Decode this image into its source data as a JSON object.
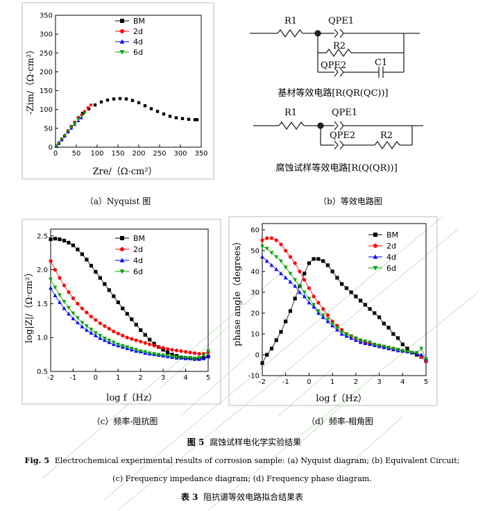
{
  "colors": {
    "bm": "#000000",
    "d2": "#ff0000",
    "d4": "#0000ff",
    "d6": "#00a000",
    "watermark": "#4cbb3c"
  },
  "panel_a": {
    "caption": "（a）Nyquist 图",
    "xlabel": "Zre/（Ω·cm²）",
    "ylabel": "-Zim/（Ω·cm²）"
  },
  "panel_b": {
    "caption": "（b）等效电路图",
    "c1": {
      "r1": "R1",
      "qpe1": "QPE1",
      "r2": "R2",
      "qpe2": "QPE2",
      "c1": "C1",
      "caption": "基材等效电路[R(QR(QC))]"
    },
    "c2": {
      "r1": "R1",
      "qpe1": "QPE1",
      "qpe2": "QPE2",
      "r2": "R2",
      "caption": "腐蚀试样等效电路[R(Q(QR))]"
    }
  },
  "panel_c": {
    "caption": "（c）频率-阻抗图",
    "xlabel": "log f（Hz）",
    "ylabel": "log|Z|/（Ω·cm²）"
  },
  "panel_d": {
    "caption": "（d）频率-相角图",
    "xlabel": "log f（Hz）",
    "ylabel": "phase angle（degrees）"
  },
  "figure": {
    "fig_cn_num": "图 5",
    "fig_cn_text": "腐蚀试样电化学实验结果",
    "fig_en_num": "Fig. 5",
    "fig_en_line1": "Electrochemical experimental results of corrosion sample: (a) Nyquist diagram;  (b) Equivalent Circuit;",
    "fig_en_line2": "(c) Frequency impedance diagram; (d) Frequency phase diagram.",
    "table_num": "表 3",
    "table_text": "阻抗谱等效电路拟合结果表"
  },
  "chart_data": [
    {
      "id": "a",
      "type": "scatter",
      "xlim": [
        0,
        350
      ],
      "ylim": [
        0,
        350
      ],
      "xticks": [
        0,
        50,
        100,
        150,
        200,
        250,
        300,
        350
      ],
      "yticks": [
        0,
        50,
        100,
        150,
        200,
        250,
        300,
        350
      ],
      "legend": "top-right",
      "series": [
        {
          "name": "BM",
          "marker": "square",
          "x": [
            2,
            8,
            15,
            22,
            30,
            38,
            46,
            55,
            65,
            80,
            95,
            110,
            125,
            140,
            155,
            170,
            185,
            200,
            215,
            230,
            245,
            260,
            275,
            290,
            305,
            320,
            335,
            340
          ],
          "y": [
            2,
            10,
            20,
            30,
            42,
            55,
            66,
            78,
            90,
            102,
            112,
            120,
            125,
            128,
            129,
            128,
            124,
            118,
            110,
            102,
            95,
            88,
            82,
            78,
            76,
            74,
            73,
            73
          ]
        },
        {
          "name": "2d",
          "marker": "circle",
          "x": [
            2,
            8,
            15,
            22,
            30,
            38,
            46,
            55,
            63,
            70,
            78,
            85
          ],
          "y": [
            3,
            12,
            22,
            32,
            44,
            55,
            66,
            77,
            86,
            95,
            105,
            112
          ]
        },
        {
          "name": "4d",
          "marker": "triangle-up",
          "x": [
            2,
            8,
            15,
            22,
            30,
            38,
            46,
            55,
            62
          ],
          "y": [
            2,
            10,
            19,
            29,
            40,
            50,
            60,
            70,
            78
          ]
        },
        {
          "name": "6d",
          "marker": "triangle-down",
          "x": [
            2,
            8,
            15,
            22,
            30,
            38,
            46,
            55,
            63,
            70
          ],
          "y": [
            2,
            11,
            21,
            31,
            42,
            53,
            63,
            74,
            82,
            90
          ]
        }
      ]
    },
    {
      "id": "c",
      "type": "scatter",
      "xlim": [
        -2,
        5
      ],
      "ylim": [
        0.5,
        2.6
      ],
      "xticks": [
        -2,
        -1,
        0,
        1,
        2,
        3,
        4,
        5
      ],
      "yticks": [
        0.5,
        1.0,
        1.5,
        2.0,
        2.5
      ],
      "legend": "top-right",
      "series": [
        {
          "name": "BM",
          "marker": "square",
          "x": [
            -2,
            -1.8,
            -1.6,
            -1.4,
            -1.2,
            -1,
            -0.8,
            -0.6,
            -0.4,
            -0.2,
            0,
            0.2,
            0.4,
            0.6,
            0.8,
            1,
            1.2,
            1.4,
            1.6,
            1.8,
            2,
            2.2,
            2.4,
            2.6,
            2.8,
            3,
            3.2,
            3.4,
            3.6,
            3.8,
            4,
            4.2,
            4.4,
            4.6,
            4.8,
            5
          ],
          "y": [
            2.45,
            2.46,
            2.45,
            2.43,
            2.4,
            2.36,
            2.3,
            2.23,
            2.15,
            2.06,
            1.97,
            1.88,
            1.79,
            1.7,
            1.61,
            1.52,
            1.43,
            1.35,
            1.27,
            1.19,
            1.11,
            1.04,
            0.97,
            0.91,
            0.86,
            0.82,
            0.78,
            0.75,
            0.73,
            0.71,
            0.7,
            0.7,
            0.69,
            0.69,
            0.7,
            0.72
          ]
        },
        {
          "name": "2d",
          "marker": "circle",
          "x": [
            -2,
            -1.8,
            -1.6,
            -1.4,
            -1.2,
            -1,
            -0.8,
            -0.6,
            -0.4,
            -0.2,
            0,
            0.2,
            0.4,
            0.6,
            0.8,
            1,
            1.2,
            1.4,
            1.6,
            1.8,
            2,
            2.2,
            2.4,
            2.6,
            2.8,
            3,
            3.2,
            3.4,
            3.6,
            3.8,
            4,
            4.2,
            4.4,
            4.6,
            4.8,
            5
          ],
          "y": [
            2.13,
            2.0,
            1.88,
            1.77,
            1.67,
            1.58,
            1.5,
            1.43,
            1.37,
            1.31,
            1.26,
            1.21,
            1.17,
            1.13,
            1.09,
            1.06,
            1.03,
            1.0,
            0.98,
            0.96,
            0.94,
            0.92,
            0.9,
            0.88,
            0.86,
            0.85,
            0.83,
            0.82,
            0.81,
            0.8,
            0.79,
            0.78,
            0.77,
            0.76,
            0.76,
            0.78
          ]
        },
        {
          "name": "4d",
          "marker": "triangle-up",
          "x": [
            -2,
            -1.8,
            -1.6,
            -1.4,
            -1.2,
            -1,
            -0.8,
            -0.6,
            -0.4,
            -0.2,
            0,
            0.2,
            0.4,
            0.6,
            0.8,
            1,
            1.2,
            1.4,
            1.6,
            1.8,
            2,
            2.2,
            2.4,
            2.6,
            2.8,
            3,
            3.2,
            3.4,
            3.6,
            3.8,
            4,
            4.2,
            4.4,
            4.6,
            4.8,
            5
          ],
          "y": [
            1.73,
            1.62,
            1.52,
            1.43,
            1.35,
            1.28,
            1.22,
            1.16,
            1.11,
            1.07,
            1.03,
            0.99,
            0.96,
            0.93,
            0.9,
            0.88,
            0.86,
            0.84,
            0.82,
            0.8,
            0.79,
            0.77,
            0.76,
            0.75,
            0.74,
            0.73,
            0.72,
            0.71,
            0.7,
            0.7,
            0.69,
            0.69,
            0.68,
            0.68,
            0.69,
            0.72
          ]
        },
        {
          "name": "6d",
          "marker": "triangle-down",
          "x": [
            -2,
            -1.8,
            -1.6,
            -1.4,
            -1.2,
            -1,
            -0.8,
            -0.6,
            -0.4,
            -0.2,
            0,
            0.2,
            0.4,
            0.6,
            0.8,
            1,
            1.2,
            1.4,
            1.6,
            1.8,
            2,
            2.2,
            2.4,
            2.6,
            2.8,
            3,
            3.2,
            3.4,
            3.6,
            3.8,
            4,
            4.2,
            4.4,
            4.6,
            4.8,
            5
          ],
          "y": [
            1.86,
            1.74,
            1.63,
            1.53,
            1.44,
            1.36,
            1.29,
            1.22,
            1.17,
            1.12,
            1.07,
            1.03,
            0.99,
            0.96,
            0.93,
            0.9,
            0.88,
            0.86,
            0.84,
            0.82,
            0.8,
            0.79,
            0.77,
            0.76,
            0.75,
            0.74,
            0.73,
            0.72,
            0.71,
            0.71,
            0.7,
            0.7,
            0.69,
            0.7,
            0.74,
            0.8
          ]
        }
      ]
    },
    {
      "id": "d",
      "type": "scatter",
      "xlim": [
        -2,
        5
      ],
      "ylim": [
        -10,
        63
      ],
      "xticks": [
        -2,
        -1,
        0,
        1,
        2,
        3,
        4,
        5
      ],
      "yticks": [
        -10,
        0,
        10,
        20,
        30,
        40,
        50,
        60
      ],
      "legend": "top-right",
      "series": [
        {
          "name": "BM",
          "marker": "square",
          "x": [
            -2,
            -1.8,
            -1.6,
            -1.4,
            -1.2,
            -1,
            -0.8,
            -0.6,
            -0.4,
            -0.2,
            0,
            0.2,
            0.4,
            0.6,
            0.8,
            1,
            1.2,
            1.4,
            1.6,
            1.8,
            2,
            2.2,
            2.4,
            2.6,
            2.8,
            3,
            3.2,
            3.4,
            3.6,
            3.8,
            4,
            4.2,
            4.4,
            4.6,
            4.8,
            5
          ],
          "y": [
            -4,
            0,
            3,
            7,
            11,
            16,
            21,
            27,
            33,
            39,
            44,
            46,
            46,
            45,
            43,
            40,
            37,
            34,
            32,
            30,
            28,
            26,
            24,
            22,
            20,
            18,
            15,
            13,
            10,
            8,
            5,
            3,
            1,
            0,
            -1,
            -3
          ]
        },
        {
          "name": "2d",
          "marker": "circle",
          "x": [
            -2,
            -1.8,
            -1.6,
            -1.4,
            -1.2,
            -1,
            -0.8,
            -0.6,
            -0.4,
            -0.2,
            0,
            0.2,
            0.4,
            0.6,
            0.8,
            1,
            1.2,
            1.4,
            1.6,
            1.8,
            2,
            2.2,
            2.4,
            2.6,
            2.8,
            3,
            3.2,
            3.4,
            3.6,
            3.8,
            4,
            4.2,
            4.4,
            4.6,
            4.8,
            5
          ],
          "y": [
            55,
            56,
            56,
            55,
            53,
            50,
            47,
            44,
            40,
            36,
            32,
            28,
            25,
            22,
            19,
            16,
            14,
            12,
            10,
            9,
            8,
            7,
            6,
            5.5,
            5,
            4.5,
            4,
            3.5,
            3,
            2.5,
            2,
            1.5,
            1,
            0.5,
            -1,
            -3
          ]
        },
        {
          "name": "4d",
          "marker": "triangle-up",
          "x": [
            -2,
            -1.8,
            -1.6,
            -1.4,
            -1.2,
            -1,
            -0.8,
            -0.6,
            -0.4,
            -0.2,
            0,
            0.2,
            0.4,
            0.6,
            0.8,
            1,
            1.2,
            1.4,
            1.6,
            1.8,
            2,
            2.2,
            2.4,
            2.6,
            2.8,
            3,
            3.2,
            3.4,
            3.6,
            3.8,
            4,
            4.2,
            4.4,
            4.6,
            4.8,
            5
          ],
          "y": [
            47,
            45,
            43,
            41,
            39,
            37,
            35,
            33,
            30,
            28,
            25,
            23,
            20,
            18,
            16,
            14,
            12,
            10,
            9,
            8,
            7,
            6,
            5.5,
            5,
            4.5,
            4,
            3.5,
            3,
            2.5,
            2,
            1.8,
            1.5,
            1,
            0.5,
            0,
            -2
          ]
        },
        {
          "name": "6d",
          "marker": "triangle-down",
          "x": [
            -2,
            -1.8,
            -1.6,
            -1.4,
            -1.2,
            -1,
            -0.8,
            -0.6,
            -0.4,
            -0.2,
            0,
            0.2,
            0.4,
            0.6,
            0.8,
            1,
            1.2,
            1.4,
            1.6,
            1.8,
            2,
            2.2,
            2.4,
            2.6,
            2.8,
            3,
            3.2,
            3.4,
            3.6,
            3.8,
            4,
            4.2,
            4.4,
            4.6,
            4.8,
            5
          ],
          "y": [
            52,
            51,
            49,
            47,
            45,
            42,
            39,
            36,
            33,
            30,
            27,
            24,
            21,
            19,
            17,
            15,
            13,
            11,
            10,
            9,
            8,
            7,
            6.5,
            6,
            5,
            4.5,
            4,
            3.5,
            3,
            2.5,
            2,
            1.5,
            1,
            1,
            3,
            -2
          ]
        }
      ]
    }
  ]
}
